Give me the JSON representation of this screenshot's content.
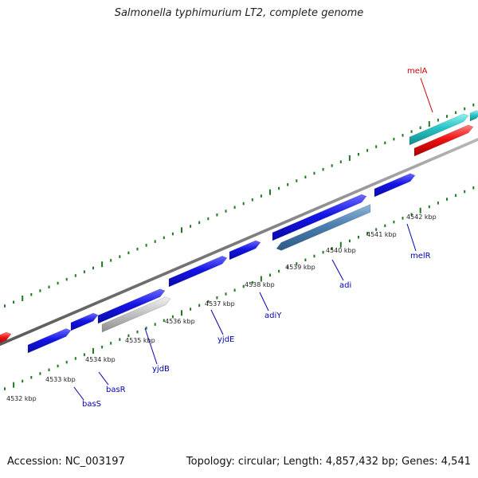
{
  "title": "Salmonella typhimurium LT2, complete genome",
  "accession": "Accession: NC_003197",
  "summary": "Topology: circular; Length: 4,857,432 bp; Genes: 4,541",
  "colors": {
    "backbone": "#808080",
    "tick": "#1e7a1e",
    "blue_gene": "#1414e6",
    "steel_gene": "#4a7fb0",
    "grey_gene": "#c4c4c4",
    "cyan_gene": "#27c4c6",
    "red_gene": "#ee1111",
    "blue_label": "#0000b0",
    "red_label": "#cc0000"
  },
  "ticks": [
    {
      "label": "4532 kbp"
    },
    {
      "label": "4533 kbp"
    },
    {
      "label": "4534 kbp"
    },
    {
      "label": "4535 kbp"
    },
    {
      "label": "4536 kbp"
    },
    {
      "label": "4537 kbp"
    },
    {
      "label": "4538 kbp"
    },
    {
      "label": "4539 kbp"
    },
    {
      "label": "4540 kbp"
    },
    {
      "label": "4541 kbp"
    },
    {
      "label": "4542 kbp"
    }
  ],
  "gene_labels": [
    {
      "name": "basS",
      "color": "blue"
    },
    {
      "name": "basR",
      "color": "blue"
    },
    {
      "name": "yjdB",
      "color": "blue"
    },
    {
      "name": "yjdE",
      "color": "blue"
    },
    {
      "name": "adiY",
      "color": "blue"
    },
    {
      "name": "adi",
      "color": "blue"
    },
    {
      "name": "melR",
      "color": "blue"
    },
    {
      "name": "melA",
      "color": "red"
    }
  ]
}
